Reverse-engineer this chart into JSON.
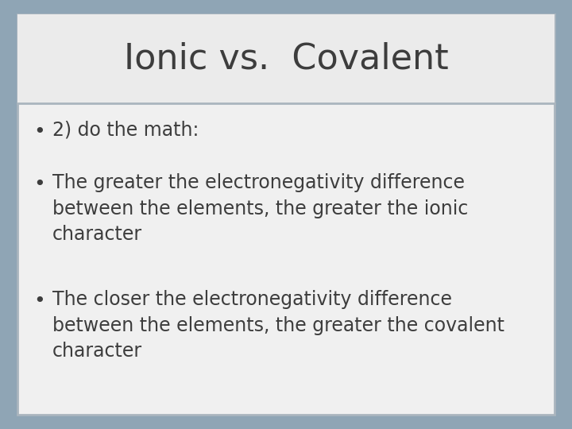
{
  "title": "Ionic vs.  Covalent",
  "title_fontsize": 32,
  "title_color": "#3d3d3d",
  "title_bg_color": "#ebebeb",
  "body_bg_color": "#f0f0f0",
  "outer_bg_color": "#8fa5b5",
  "border_color": "#aab5be",
  "bullet_points": [
    "2) do the math:",
    "The greater the electronegativity difference\nbetween the elements, the greater the ionic\ncharacter",
    "The closer the electronegativity difference\nbetween the elements, the greater the covalent\ncharacter"
  ],
  "bullet_fontsize": 17,
  "bullet_color": "#3d3d3d",
  "bullet_symbol": "•",
  "font_family": "DejaVu Sans"
}
